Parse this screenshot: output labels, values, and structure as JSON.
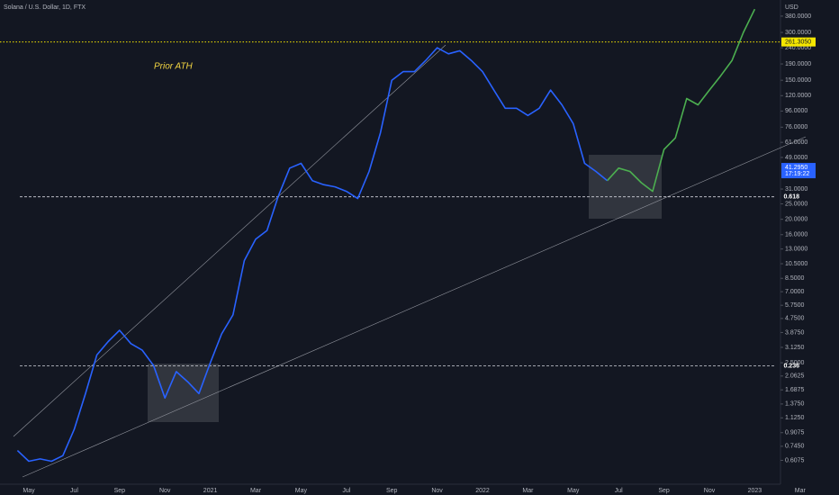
{
  "chart_data": {
    "type": "line",
    "title": "Solana / U.S. Dollar, 1D, FTX",
    "currency": "USD",
    "log_scale": true,
    "grid": false,
    "annotation": "Prior ATH",
    "categories": [
      null,
      "May",
      null,
      null,
      null,
      "Jul",
      null,
      null,
      null,
      "Sep",
      null,
      null,
      null,
      "Nov",
      null,
      null,
      null,
      "2021",
      null,
      null,
      null,
      "Mar",
      null,
      null,
      null,
      "May",
      null,
      null,
      null,
      "Jul",
      null,
      null,
      null,
      "Sep",
      null,
      null,
      null,
      "Nov",
      null,
      null,
      null,
      "2022",
      null,
      null,
      null,
      "Mar",
      null,
      null,
      null,
      "May",
      null,
      null,
      null,
      "Jul",
      null,
      null,
      null,
      "Sep",
      null,
      null,
      null,
      "Nov",
      null,
      null,
      null,
      "2023",
      null,
      null,
      null,
      "Mar"
    ],
    "series": [
      {
        "color": "#2962ff",
        "values": [
          0.7,
          0.6,
          0.62,
          0.6,
          0.65,
          0.95,
          1.6,
          2.8,
          3.4,
          4.0,
          3.3,
          3.0,
          2.4,
          1.5,
          2.2,
          1.9,
          1.6,
          2.5,
          3.8,
          5.0,
          11,
          15,
          17,
          28,
          42,
          45,
          35,
          33,
          32,
          30,
          27,
          40,
          70,
          150,
          170,
          170,
          200,
          240,
          220,
          230,
          200,
          170,
          130,
          100,
          100,
          90,
          100,
          130,
          105,
          80,
          45,
          40,
          35,
          null,
          null,
          null,
          null,
          null,
          null,
          null,
          null,
          null,
          null,
          null,
          null,
          null,
          null,
          null,
          null,
          null
        ]
      },
      {
        "color": "#4caf50",
        "values": [
          null,
          null,
          null,
          null,
          null,
          null,
          null,
          null,
          null,
          null,
          null,
          null,
          null,
          null,
          null,
          null,
          null,
          null,
          null,
          null,
          null,
          null,
          null,
          null,
          null,
          null,
          null,
          null,
          null,
          null,
          null,
          null,
          null,
          null,
          null,
          null,
          null,
          null,
          null,
          null,
          null,
          null,
          null,
          null,
          null,
          null,
          null,
          null,
          null,
          null,
          null,
          null,
          35,
          42,
          40,
          34,
          30,
          55,
          65,
          115,
          105,
          130,
          160,
          200,
          300,
          420,
          null,
          null,
          null,
          null
        ]
      }
    ],
    "ylim": [
      0.43,
      480
    ],
    "yticks": [
      {
        "value": 380,
        "label": "380.0000"
      },
      {
        "value": 300,
        "label": "300.0000"
      },
      {
        "value": 240,
        "label": "240.0000"
      },
      {
        "value": 190,
        "label": "190.0000"
      },
      {
        "value": 150,
        "label": "150.0000"
      },
      {
        "value": 120,
        "label": "120.0000"
      },
      {
        "value": 96,
        "label": "96.0000"
      },
      {
        "value": 76,
        "label": "76.0000"
      },
      {
        "value": 61,
        "label": "61.0000"
      },
      {
        "value": 49,
        "label": "49.0000"
      },
      {
        "value": 31,
        "label": "31.0000"
      },
      {
        "value": 25,
        "label": "25.0000"
      },
      {
        "value": 20,
        "label": "20.0000"
      },
      {
        "value": 16,
        "label": "16.0000"
      },
      {
        "value": 13,
        "label": "13.0000"
      },
      {
        "value": 10.5,
        "label": "10.5000"
      },
      {
        "value": 8.5,
        "label": "8.5000"
      },
      {
        "value": 7,
        "label": "7.0000"
      },
      {
        "value": 5.75,
        "label": "5.7500"
      },
      {
        "value": 4.75,
        "label": "4.7500"
      },
      {
        "value": 3.875,
        "label": "3.8750"
      },
      {
        "value": 3.125,
        "label": "3.1250"
      },
      {
        "value": 2.5,
        "label": "2.5000"
      },
      {
        "value": 2.0625,
        "label": "2.0625"
      },
      {
        "value": 1.6875,
        "label": "1.6875"
      },
      {
        "value": 1.375,
        "label": "1.3750"
      },
      {
        "value": 1.125,
        "label": "1.1250"
      },
      {
        "value": 0.9075,
        "label": "0.9075"
      },
      {
        "value": 0.745,
        "label": "0.7450"
      },
      {
        "value": 0.6075,
        "label": "0.6075"
      }
    ],
    "ath_level": {
      "value": 261.305,
      "label": "261.3050"
    },
    "last_price": {
      "value": 41.295,
      "label": "41.2950"
    },
    "countdown": "17:19:22",
    "fib_levels": [
      {
        "value": 27.7,
        "label": "0.618"
      },
      {
        "value": 2.39,
        "label": "0.236"
      }
    ]
  }
}
